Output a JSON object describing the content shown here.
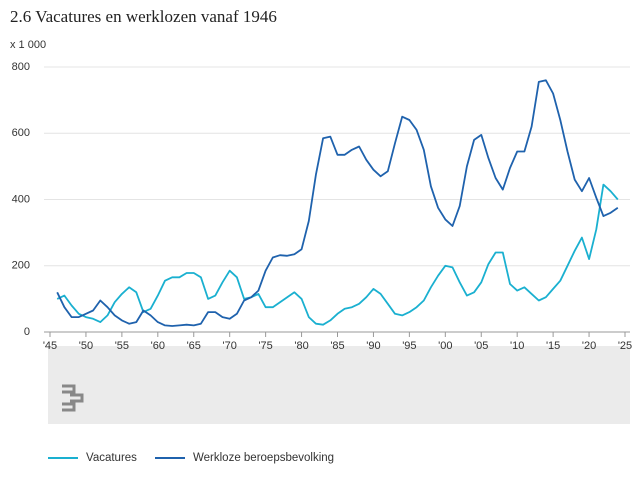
{
  "chart_data": {
    "type": "line",
    "title": "2.6 Vacatures en werklozen vanaf 1946",
    "y_unit": "x 1 000",
    "x": [
      1946,
      1947,
      1948,
      1949,
      1950,
      1951,
      1952,
      1953,
      1954,
      1955,
      1956,
      1957,
      1958,
      1959,
      1960,
      1961,
      1962,
      1963,
      1964,
      1965,
      1966,
      1967,
      1968,
      1969,
      1970,
      1971,
      1972,
      1973,
      1974,
      1975,
      1976,
      1977,
      1978,
      1979,
      1980,
      1981,
      1982,
      1983,
      1984,
      1985,
      1986,
      1987,
      1988,
      1989,
      1990,
      1991,
      1992,
      1993,
      1994,
      1995,
      1996,
      1997,
      1998,
      1999,
      2000,
      2001,
      2002,
      2003,
      2004,
      2005,
      2006,
      2007,
      2008,
      2009,
      2010,
      2011,
      2012,
      2013,
      2014,
      2015,
      2016,
      2017,
      2018,
      2019,
      2020,
      2021,
      2022,
      2023,
      2024
    ],
    "series": [
      {
        "name": "Vacatures",
        "color": "#1ab0d0",
        "values": [
          100,
          110,
          80,
          55,
          45,
          40,
          30,
          50,
          90,
          115,
          135,
          120,
          60,
          70,
          110,
          155,
          165,
          165,
          178,
          178,
          165,
          100,
          110,
          150,
          185,
          165,
          100,
          105,
          115,
          75,
          75,
          90,
          105,
          120,
          100,
          45,
          25,
          22,
          35,
          55,
          70,
          75,
          85,
          105,
          130,
          115,
          85,
          55,
          50,
          60,
          75,
          95,
          135,
          170,
          200,
          195,
          150,
          110,
          120,
          150,
          205,
          240,
          240,
          145,
          125,
          135,
          115,
          95,
          105,
          130,
          155,
          200,
          245,
          285,
          220,
          310,
          445,
          425,
          400
        ]
      },
      {
        "name": "Werkloze beroepsbevolking",
        "color": "#1f62ad",
        "values": [
          120,
          75,
          45,
          45,
          55,
          65,
          95,
          75,
          50,
          35,
          25,
          30,
          65,
          50,
          30,
          20,
          18,
          20,
          22,
          20,
          25,
          60,
          60,
          45,
          40,
          55,
          95,
          105,
          125,
          185,
          225,
          232,
          230,
          235,
          250,
          335,
          475,
          585,
          590,
          535,
          535,
          550,
          560,
          520,
          490,
          470,
          485,
          570,
          650,
          640,
          610,
          550,
          440,
          375,
          340,
          320,
          380,
          500,
          580,
          595,
          525,
          465,
          430,
          495,
          545,
          545,
          620,
          755,
          760,
          720,
          640,
          545,
          460,
          425,
          465,
          405,
          350,
          360,
          375
        ]
      }
    ],
    "xlim": [
      1945,
      2025
    ],
    "xticks": [
      {
        "value": 1945,
        "label": "'45"
      },
      {
        "value": 1950,
        "label": "'50"
      },
      {
        "value": 1955,
        "label": "'55"
      },
      {
        "value": 1960,
        "label": "'60"
      },
      {
        "value": 1965,
        "label": "'65"
      },
      {
        "value": 1970,
        "label": "'70"
      },
      {
        "value": 1975,
        "label": "'75"
      },
      {
        "value": 1980,
        "label": "'80"
      },
      {
        "value": 1985,
        "label": "'85"
      },
      {
        "value": 1990,
        "label": "'90"
      },
      {
        "value": 1995,
        "label": "'95"
      },
      {
        "value": 2000,
        "label": "'00"
      },
      {
        "value": 2005,
        "label": "'05"
      },
      {
        "value": 2010,
        "label": "'10"
      },
      {
        "value": 2015,
        "label": "'15"
      },
      {
        "value": 2020,
        "label": "'20"
      },
      {
        "value": 2025,
        "label": "'25"
      }
    ],
    "ylim": [
      0,
      800
    ],
    "yticks": [
      0,
      200,
      400,
      600,
      800
    ],
    "grid": true
  }
}
